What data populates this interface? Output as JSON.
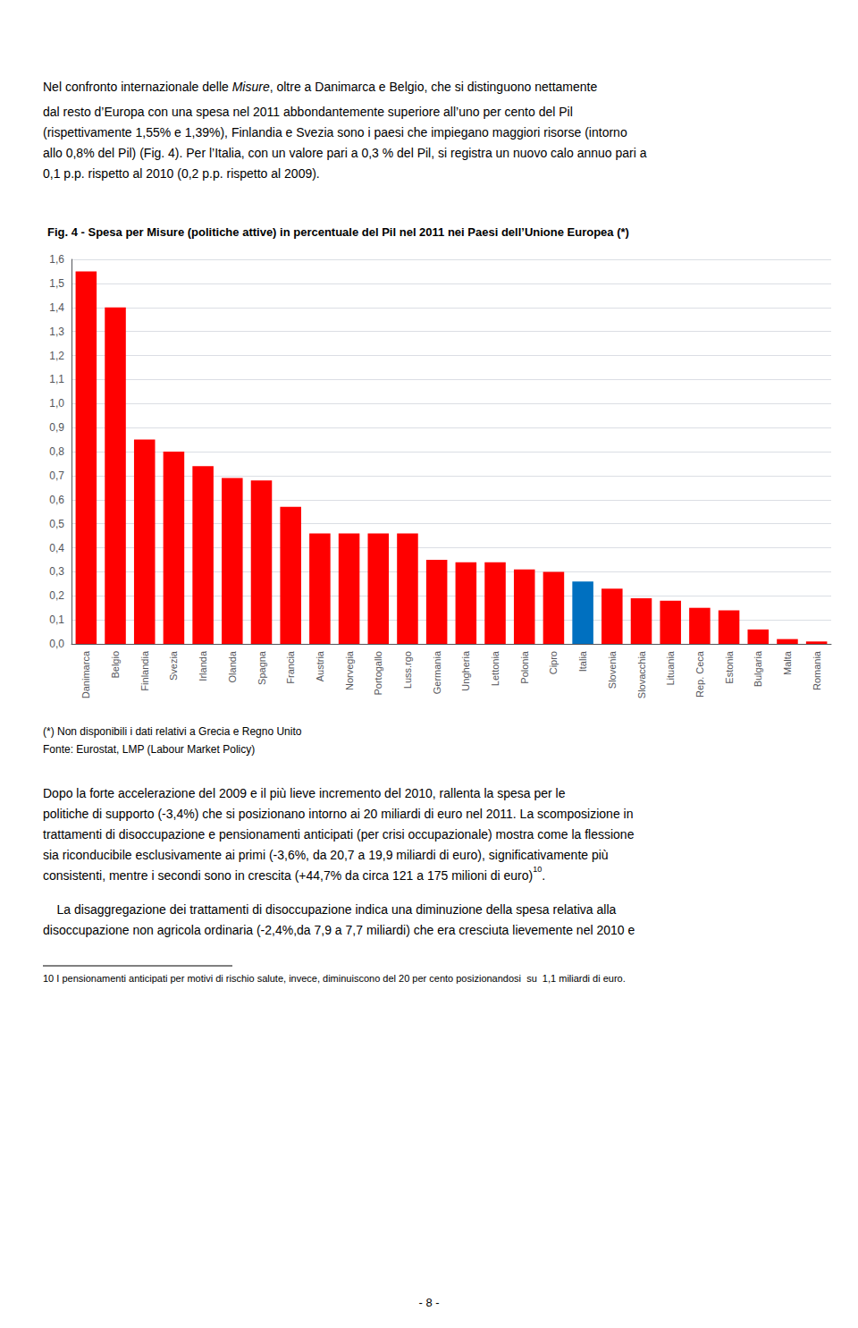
{
  "chart_data": {
    "type": "bar",
    "title": "Fig. 4 - Spesa per Misure (politiche attive) in percentuale del Pil nel 2011 nei Paesi dell’Unione Europea (*)",
    "categories": [
      "Danimarca",
      "Belgio",
      "Finlandia",
      "Svezia",
      "Irlanda",
      "Olanda",
      "Spagna",
      "Francia",
      "Austria",
      "Norvegia",
      "Portogallo",
      "Luss.rgo",
      "Germania",
      "Ungheria",
      "Lettonia",
      "Polonia",
      "Cipro",
      "Italia",
      "Slovenia",
      "Slovacchia",
      "Lituania",
      "Rep. Ceca",
      "Estonia",
      "Bulgaria",
      "Malta",
      "Romania"
    ],
    "values": [
      1.55,
      1.4,
      0.85,
      0.8,
      0.74,
      0.69,
      0.68,
      0.57,
      0.46,
      0.46,
      0.46,
      0.46,
      0.35,
      0.34,
      0.34,
      0.31,
      0.3,
      0.26,
      0.23,
      0.19,
      0.18,
      0.15,
      0.14,
      0.06,
      0.02,
      0.01
    ],
    "colors": [
      "#ff0000",
      "#ff0000",
      "#ff0000",
      "#ff0000",
      "#ff0000",
      "#ff0000",
      "#ff0000",
      "#ff0000",
      "#ff0000",
      "#ff0000",
      "#ff0000",
      "#ff0000",
      "#ff0000",
      "#ff0000",
      "#ff0000",
      "#ff0000",
      "#ff0000",
      "#0070c0",
      "#ff0000",
      "#ff0000",
      "#ff0000",
      "#ff0000",
      "#ff0000",
      "#ff0000",
      "#ff0000",
      "#ff0000"
    ],
    "ylim": [
      0.0,
      1.6
    ],
    "yticks": [
      {
        "value": 0.0,
        "label": "0,0"
      },
      {
        "value": 0.1,
        "label": "0,1"
      },
      {
        "value": 0.2,
        "label": "0,2"
      },
      {
        "value": 0.3,
        "label": "0,3"
      },
      {
        "value": 0.4,
        "label": "0,4"
      },
      {
        "value": 0.5,
        "label": "0,5"
      },
      {
        "value": 0.6,
        "label": "0,6"
      },
      {
        "value": 0.7,
        "label": "0,7"
      },
      {
        "value": 0.8,
        "label": "0,8"
      },
      {
        "value": 0.9,
        "label": "0,9"
      },
      {
        "value": 1.0,
        "label": "1,0"
      },
      {
        "value": 1.1,
        "label": "1,1"
      },
      {
        "value": 1.2,
        "label": "1,2"
      },
      {
        "value": 1.3,
        "label": "1,3"
      },
      {
        "value": 1.4,
        "label": "1,4"
      },
      {
        "value": 1.5,
        "label": "1,5"
      },
      {
        "value": 1.6,
        "label": "1,6"
      }
    ],
    "grid": true,
    "annotations": [
      "Nel confronto internazionale delle ",
      "Misure",
      ", oltre a Danimarca e Belgio, che si distinguono nettamente",
      "dal resto d’Europa con una spesa nel 2011 abbondantemente superiore all’uno per cento del Pil\n(rispettivamente 1,55% e 1,39%), Finlandia e Svezia sono i paesi che impiegano maggiori risorse (intorno\nallo 0,8% del Pil) (Fig. 4). Per l’Italia, con un valore pari a 0,3 % del Pil, si registra un nuovo calo annuo pari a\n0,1 p.p. rispetto al 2010 (0,2 p.p. rispetto al 2009).",
      "(*) Non disponibili i dati relativi a Grecia e Regno Unito",
      "Fonte: Eurostat, LMP (Labour Market Policy)",
      "Dopo la forte accelerazione del 2009 e il più lieve incremento del 2010, rallenta la spesa per le\npolitiche di supporto (-3,4%) che si posizionano intorno ai 20 miliardi di euro nel 2011. La scomposizione in\ntrattamenti di disoccupazione e pensionamenti anticipati (per crisi occupazionale) mostra come la flessione\nsia riconducibile esclusivamente ai primi (-3,6%, da 20,7 a 19,9 miliardi di euro), significativamente più\nconsistenti, mentre i secondi sono in crescita (+44,7% da circa 121 a 175 milioni di euro)",
      "10",
      ".",
      "    La disaggregazione dei trattamenti di disoccupazione indica una diminuzione della spesa relativa alla\ndisoccupazione non agricola ordinaria (-2,4%,da 7,9 a 7,7 miliardi) che era cresciuta lievemente nel 2010 e",
      "10 I pensionamenti anticipati per motivi di rischio salute, invece, diminuiscono del 20 per cento posizionandosi  su  1,1 miliardi di euro.",
      "- 8 -"
    ]
  }
}
